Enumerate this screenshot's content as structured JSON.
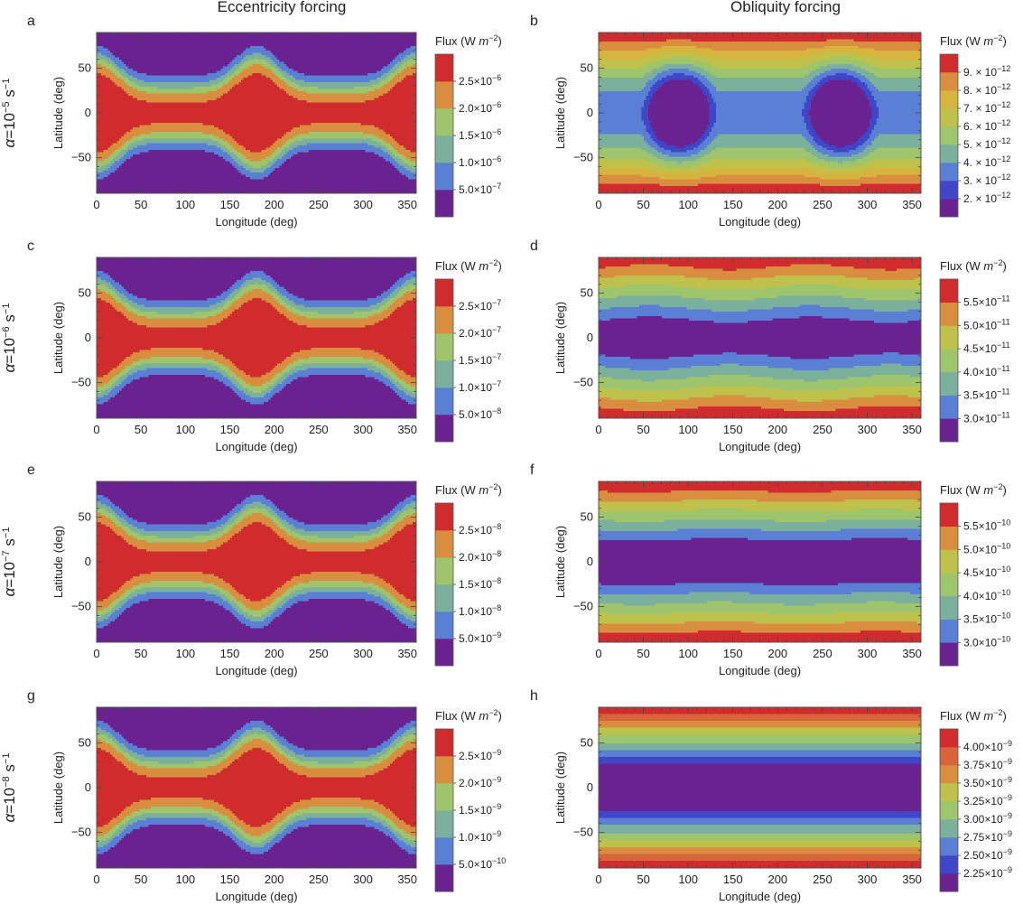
{
  "figure": {
    "column_titles": [
      "Eccentricity forcing",
      "Obliquity forcing"
    ],
    "row_labels": [
      {
        "alpha": "α=10",
        "exp": "−5",
        "unit": " s",
        "unit_exp": "−1"
      },
      {
        "alpha": "α=10",
        "exp": "−6",
        "unit": " s",
        "unit_exp": "−1"
      },
      {
        "alpha": "α=10",
        "exp": "−7",
        "unit": " s",
        "unit_exp": "−1"
      },
      {
        "alpha": "α=10",
        "exp": "−8",
        "unit": " s",
        "unit_exp": "−1"
      }
    ],
    "colorbar_title": {
      "prefix": "Flux (W ",
      "unit": "m",
      "exp": "−2",
      "suffix": ")"
    }
  },
  "colors": {
    "purple": "#6a2290",
    "blue_dark": "#3f46c8",
    "blue": "#5a80d6",
    "teal": "#7bb09c",
    "green": "#9ec46c",
    "yellow_green": "#bfc24a",
    "yellow": "#d7b43e",
    "orange": "#d88e3e",
    "orange_red": "#d8653a",
    "red": "#d02c2e",
    "contour_line": "#333333"
  },
  "chart_data": [
    {
      "id": "a",
      "type": "heatmap",
      "pattern": "eccentricity",
      "title": "Eccentricity forcing",
      "row_label": "α=10^−5 s^−1",
      "xlabel": "Longitude (deg)",
      "ylabel": "Latitude (deg)",
      "xlim": [
        0,
        360
      ],
      "ylim": [
        -90,
        90
      ],
      "xticks": [
        0,
        50,
        100,
        150,
        200,
        250,
        300,
        350
      ],
      "yticks": [
        -50,
        0,
        50
      ],
      "colorbar": {
        "title": "Flux (W m^−2)",
        "labels": [
          {
            "m": "5.0",
            "e": "−7"
          },
          {
            "m": "1.0",
            "e": "−6"
          },
          {
            "m": "1.5",
            "e": "−6"
          },
          {
            "m": "2.0",
            "e": "−6"
          },
          {
            "m": "2.5",
            "e": "−6"
          }
        ]
      }
    },
    {
      "id": "b",
      "type": "heatmap",
      "pattern": "obliquity_strong",
      "title": "Obliquity forcing",
      "row_label": "α=10^−5 s^−1",
      "xlabel": "Longitude (deg)",
      "ylabel": "Latitude (deg)",
      "xlim": [
        0,
        360
      ],
      "ylim": [
        -90,
        90
      ],
      "xticks": [
        0,
        50,
        100,
        150,
        200,
        250,
        300,
        350
      ],
      "yticks": [
        -50,
        0,
        50
      ],
      "colorbar": {
        "title": "Flux (W m^−2)",
        "labels": [
          {
            "m": "2.",
            "e": "−12",
            "x": true
          },
          {
            "m": "3.",
            "e": "−12",
            "x": true
          },
          {
            "m": "4.",
            "e": "−12",
            "x": true
          },
          {
            "m": "5.",
            "e": "−12",
            "x": true
          },
          {
            "m": "6.",
            "e": "−12",
            "x": true
          },
          {
            "m": "7.",
            "e": "−12",
            "x": true
          },
          {
            "m": "8.",
            "e": "−12",
            "x": true
          },
          {
            "m": "9.",
            "e": "−12",
            "x": true
          }
        ]
      }
    },
    {
      "id": "c",
      "type": "heatmap",
      "pattern": "eccentricity",
      "row_label": "α=10^−6 s^−1",
      "xlabel": "Longitude (deg)",
      "ylabel": "Latitude (deg)",
      "xlim": [
        0,
        360
      ],
      "ylim": [
        -90,
        90
      ],
      "xticks": [
        0,
        50,
        100,
        150,
        200,
        250,
        300,
        350
      ],
      "yticks": [
        -50,
        0,
        50
      ],
      "colorbar": {
        "title": "Flux (W m^−2)",
        "labels": [
          {
            "m": "5.0",
            "e": "−8"
          },
          {
            "m": "1.0",
            "e": "−7"
          },
          {
            "m": "1.5",
            "e": "−7"
          },
          {
            "m": "2.0",
            "e": "−7"
          },
          {
            "m": "2.5",
            "e": "−7"
          }
        ]
      }
    },
    {
      "id": "d",
      "type": "heatmap",
      "pattern": "obliquity_wave",
      "row_label": "α=10^−6 s^−1",
      "xlabel": "Longitude (deg)",
      "ylabel": "Latitude (deg)",
      "xlim": [
        0,
        360
      ],
      "ylim": [
        -90,
        90
      ],
      "xticks": [
        0,
        50,
        100,
        150,
        200,
        250,
        300,
        350
      ],
      "yticks": [
        -50,
        0,
        50
      ],
      "colorbar": {
        "title": "Flux (W m^−2)",
        "labels": [
          {
            "m": "3.0",
            "e": "−11"
          },
          {
            "m": "3.5",
            "e": "−11"
          },
          {
            "m": "4.0",
            "e": "−11"
          },
          {
            "m": "4.5",
            "e": "−11"
          },
          {
            "m": "5.0",
            "e": "−11"
          },
          {
            "m": "5.5",
            "e": "−11"
          }
        ]
      }
    },
    {
      "id": "e",
      "type": "heatmap",
      "pattern": "eccentricity",
      "row_label": "α=10^−7 s^−1",
      "xlabel": "Longitude (deg)",
      "ylabel": "Latitude (deg)",
      "xlim": [
        0,
        360
      ],
      "ylim": [
        -90,
        90
      ],
      "xticks": [
        0,
        50,
        100,
        150,
        200,
        250,
        300,
        350
      ],
      "yticks": [
        -50,
        0,
        50
      ],
      "colorbar": {
        "title": "Flux (W m^−2)",
        "labels": [
          {
            "m": "5.0",
            "e": "−9"
          },
          {
            "m": "1.0",
            "e": "−8"
          },
          {
            "m": "1.5",
            "e": "−8"
          },
          {
            "m": "2.0",
            "e": "−8"
          },
          {
            "m": "2.5",
            "e": "−8"
          }
        ]
      }
    },
    {
      "id": "f",
      "type": "heatmap",
      "pattern": "obliquity_weak",
      "row_label": "α=10^−7 s^−1",
      "xlabel": "Longitude (deg)",
      "ylabel": "Latitude (deg)",
      "xlim": [
        0,
        360
      ],
      "ylim": [
        -90,
        90
      ],
      "xticks": [
        0,
        50,
        100,
        150,
        200,
        250,
        300,
        350
      ],
      "yticks": [
        -50,
        0,
        50
      ],
      "colorbar": {
        "title": "Flux (W m^−2)",
        "labels": [
          {
            "m": "3.0",
            "e": "−10"
          },
          {
            "m": "3.5",
            "e": "−10"
          },
          {
            "m": "4.0",
            "e": "−10"
          },
          {
            "m": "4.5",
            "e": "−10"
          },
          {
            "m": "5.0",
            "e": "−10"
          },
          {
            "m": "5.5",
            "e": "−10"
          }
        ]
      }
    },
    {
      "id": "g",
      "type": "heatmap",
      "pattern": "eccentricity",
      "row_label": "α=10^−8 s^−1",
      "xlabel": "Longitude (deg)",
      "ylabel": "Latitude (deg)",
      "xlim": [
        0,
        360
      ],
      "ylim": [
        -90,
        90
      ],
      "xticks": [
        0,
        50,
        100,
        150,
        200,
        250,
        300,
        350
      ],
      "yticks": [
        -50,
        0,
        50
      ],
      "colorbar": {
        "title": "Flux (W m^−2)",
        "labels": [
          {
            "m": "5.0",
            "e": "−10"
          },
          {
            "m": "1.0",
            "e": "−9"
          },
          {
            "m": "1.5",
            "e": "−9"
          },
          {
            "m": "2.0",
            "e": "−9"
          },
          {
            "m": "2.5",
            "e": "−9"
          }
        ]
      }
    },
    {
      "id": "h",
      "type": "heatmap",
      "pattern": "obliquity_flat",
      "row_label": "α=10^−8 s^−1",
      "xlabel": "Longitude (deg)",
      "ylabel": "Latitude (deg)",
      "xlim": [
        0,
        360
      ],
      "ylim": [
        -90,
        90
      ],
      "xticks": [
        0,
        50,
        100,
        150,
        200,
        250,
        300,
        350
      ],
      "yticks": [
        -50,
        0,
        50
      ],
      "colorbar": {
        "title": "Flux (W m^−2)",
        "labels": [
          {
            "m": "2.25",
            "e": "−9"
          },
          {
            "m": "2.50",
            "e": "−9"
          },
          {
            "m": "2.75",
            "e": "−9"
          },
          {
            "m": "3.00",
            "e": "−9"
          },
          {
            "m": "3.25",
            "e": "−9"
          },
          {
            "m": "3.50",
            "e": "−9"
          },
          {
            "m": "3.75",
            "e": "−9"
          },
          {
            "m": "4.00",
            "e": "−9"
          }
        ]
      }
    }
  ]
}
